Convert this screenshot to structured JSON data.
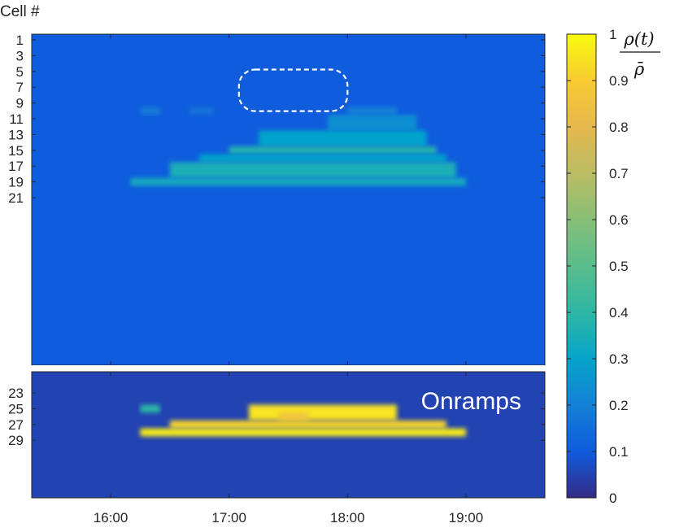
{
  "chart_data": {
    "type": "heatmap",
    "ylabel": "Cell #",
    "colorbar_label": "ρ(t) / ρ̄",
    "colormap": "parula",
    "clim": [
      0,
      1
    ],
    "colorbar_ticks": [
      "0",
      "0.1",
      "0.2",
      "0.3",
      "0.4",
      "0.5",
      "0.6",
      "0.7",
      "0.8",
      "0.9",
      "1"
    ],
    "x_tick_labels": [
      "16:00",
      "17:00",
      "18:00",
      "19:00"
    ],
    "x_range": [
      "15:20",
      "19:40"
    ],
    "panels": [
      {
        "name": "mainline",
        "y_range": [
          1,
          21
        ],
        "y_tick_labels": [
          "1",
          "3",
          "5",
          "7",
          "9",
          "11",
          "13",
          "15",
          "17",
          "19",
          "21"
        ],
        "background_value": 0.1,
        "regions": [
          {
            "cells": [
              10,
              10
            ],
            "time": [
              "16:15",
              "16:25"
            ],
            "value": 0.18
          },
          {
            "cells": [
              10,
              10
            ],
            "time": [
              "16:40",
              "16:52"
            ],
            "value": 0.16
          },
          {
            "cells": [
              10,
              10
            ],
            "time": [
              "18:00",
              "18:25"
            ],
            "value": 0.2
          },
          {
            "cells": [
              11,
              12
            ],
            "time": [
              "17:50",
              "18:35"
            ],
            "value": 0.24
          },
          {
            "cells": [
              13,
              14
            ],
            "time": [
              "17:15",
              "18:40"
            ],
            "value": 0.3
          },
          {
            "cells": [
              15,
              15
            ],
            "time": [
              "17:00",
              "18:45"
            ],
            "value": 0.38
          },
          {
            "cells": [
              16,
              16
            ],
            "time": [
              "16:45",
              "18:50"
            ],
            "value": 0.3
          },
          {
            "cells": [
              17,
              18
            ],
            "time": [
              "16:30",
              "18:55"
            ],
            "value": 0.35
          },
          {
            "cells": [
              19,
              19
            ],
            "time": [
              "16:10",
              "19:00"
            ],
            "value": 0.33
          }
        ],
        "annotation": "dashed box around cells 6–9, 17:05–18:00 (low-density region)"
      },
      {
        "name": "onramps",
        "label": "Onramps",
        "y_range": [
          23,
          29
        ],
        "y_tick_labels": [
          "23",
          "25",
          "27",
          "29"
        ],
        "background_value": 0.05,
        "regions": [
          {
            "cells": [
              25,
              25
            ],
            "time": [
              "16:15",
              "16:25"
            ],
            "value": 0.4
          },
          {
            "cells": [
              25,
              26
            ],
            "time": [
              "17:10",
              "18:25"
            ],
            "value": 0.95
          },
          {
            "cells": [
              26,
              26
            ],
            "time": [
              "17:25",
              "17:40"
            ],
            "value": 0.85
          },
          {
            "cells": [
              27,
              27
            ],
            "time": [
              "16:30",
              "18:50"
            ],
            "value": 0.92
          },
          {
            "cells": [
              28,
              28
            ],
            "time": [
              "16:15",
              "19:00"
            ],
            "value": 0.97
          }
        ]
      }
    ]
  }
}
